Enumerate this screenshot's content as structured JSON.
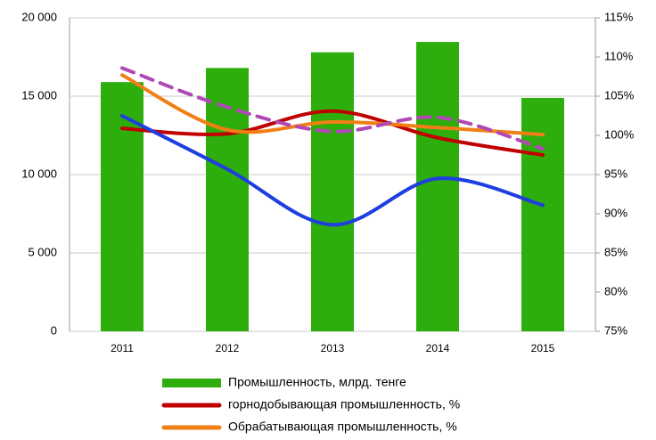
{
  "chart_data": {
    "type": "bar-line",
    "categories": [
      "2011",
      "2012",
      "2013",
      "2014",
      "2015"
    ],
    "series": [
      {
        "name": "Промышленность, млрд. тенге",
        "type": "bar",
        "color": "#2eae0c",
        "values": [
          15900,
          16800,
          17800,
          18460,
          14890
        ]
      },
      {
        "name": "горнодобывающая промышленность, %",
        "type": "line",
        "axis": "y2",
        "color": "#c00000",
        "values": [
          100.9,
          100.2,
          103.1,
          99.7,
          97.5
        ]
      },
      {
        "name": "Обрабатывающая промышленность, %",
        "type": "line",
        "axis": "y2",
        "color": "#f07f16",
        "values": [
          107.7,
          100.7,
          101.7,
          101.0,
          100.1
        ]
      },
      {
        "type": "line",
        "axis": "y2",
        "color": "#1f3ee0",
        "values": [
          102.5,
          95.7,
          88.6,
          94.5,
          91.1
        ]
      },
      {
        "type": "line",
        "axis": "y2",
        "color": "#b048b5",
        "dashed": true,
        "values": [
          108.6,
          103.6,
          100.5,
          102.3,
          98.3
        ]
      }
    ],
    "ylim": [
      0,
      20000
    ],
    "yticks": [
      0,
      {
        "value": 5000,
        "label": "5 000"
      },
      {
        "value": 10000,
        "label": "10 000"
      },
      {
        "value": 15000,
        "label": "15 000"
      },
      {
        "value": 20000,
        "label": "20 000"
      }
    ],
    "y2lim": [
      75,
      115
    ],
    "y2ticks": [
      {
        "value": 75,
        "label": "75%"
      },
      {
        "value": 80,
        "label": "80%"
      },
      {
        "value": 85,
        "label": "85%"
      },
      {
        "value": 90,
        "label": "90%"
      },
      {
        "value": 95,
        "label": "95%"
      },
      {
        "value": 100,
        "label": "100%"
      },
      {
        "value": 105,
        "label": "105%"
      },
      {
        "value": 110,
        "label": "110%"
      },
      {
        "value": 115,
        "label": "115%"
      }
    ],
    "grid": true,
    "legend": "bottom"
  }
}
